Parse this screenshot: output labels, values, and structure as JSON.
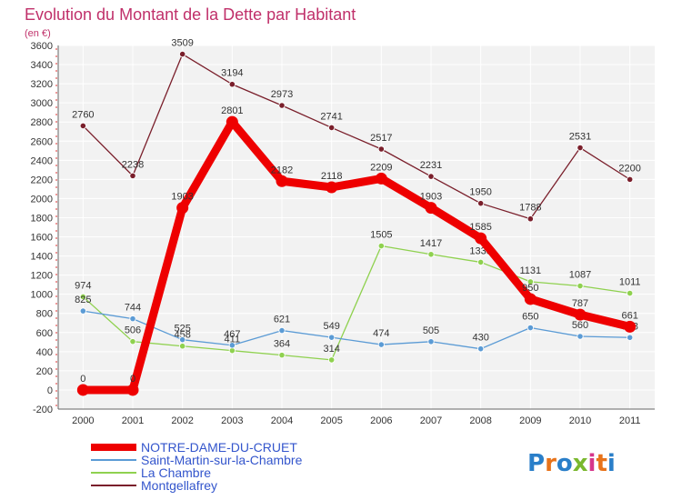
{
  "chart_data": {
    "type": "line",
    "title": "Evolution du Montant de la Dette par Habitant",
    "subtitle": "(en €)",
    "x": [
      "2000",
      "2001",
      "2002",
      "2003",
      "2004",
      "2005",
      "2006",
      "2007",
      "2008",
      "2009",
      "2010",
      "2011"
    ],
    "ylim": [
      -200,
      3600
    ],
    "yticks": [
      -200,
      0,
      200,
      400,
      600,
      800,
      1000,
      1200,
      1400,
      1600,
      1800,
      2000,
      2200,
      2400,
      2600,
      2800,
      3000,
      3200,
      3400,
      3600
    ],
    "grid": true,
    "legend_position": "bottom-left",
    "series": [
      {
        "name": "Montgellafrey",
        "color": "#7a1f2b",
        "values": [
          2760,
          2238,
          3509,
          3194,
          2973,
          2741,
          2517,
          2231,
          1950,
          1788,
          2531,
          2200
        ],
        "labels": [
          "2760",
          "2238",
          "3509",
          "3194",
          "2973",
          "2741",
          "2517",
          "2231",
          "1950",
          "1788",
          "2531",
          "2200"
        ]
      },
      {
        "name": "La Chambre",
        "color": "#8fd14f",
        "values": [
          974,
          506,
          458,
          411,
          364,
          314,
          1505,
          1417,
          1335,
          1131,
          1087,
          1011
        ],
        "labels": [
          "974",
          "506",
          "458",
          "411",
          "364",
          "314",
          "1505",
          "1417",
          "1335",
          "1131",
          "1087",
          "1011"
        ]
      },
      {
        "name": "Saint-Martin-sur-la-Chambre",
        "color": "#5b9bd5",
        "values": [
          825,
          744,
          525,
          467,
          621,
          549,
          474,
          505,
          430,
          650,
          560,
          548
        ],
        "labels": [
          "825",
          "744",
          "525",
          "467",
          "621",
          "549",
          "474",
          "505",
          "430",
          "650",
          "560",
          "548"
        ]
      },
      {
        "name": "NOTRE-DAME-DU-CRUET",
        "color": "#ee0000",
        "values": [
          0,
          0,
          1903,
          2801,
          2182,
          2118,
          2209,
          1903,
          1585,
          950,
          787,
          661
        ],
        "labels": [
          "0",
          "0",
          "1903",
          "2801",
          "2182",
          "2118",
          "2209",
          "1903",
          "1585",
          "950",
          "787",
          "661"
        ]
      }
    ],
    "legend": [
      {
        "name": "NOTRE-DAME-DU-CRUET",
        "color": "#ee0000"
      },
      {
        "name": "Saint-Martin-sur-la-Chambre",
        "color": "#5b9bd5"
      },
      {
        "name": "La Chambre",
        "color": "#8fd14f"
      },
      {
        "name": "Montgellafrey",
        "color": "#7a1f2b"
      }
    ]
  },
  "logo": {
    "text": "Proxiti",
    "colors": [
      "#2a7fc9",
      "#e8731a",
      "#2a7fc9",
      "#7ab82e",
      "#d6368a",
      "#e8731a",
      "#2a7fc9"
    ]
  },
  "colors": {
    "plot_bg": "#f2f2f2",
    "grid": "#ffffff",
    "legend_text": "#3355cc",
    "title": "#c0306a"
  }
}
